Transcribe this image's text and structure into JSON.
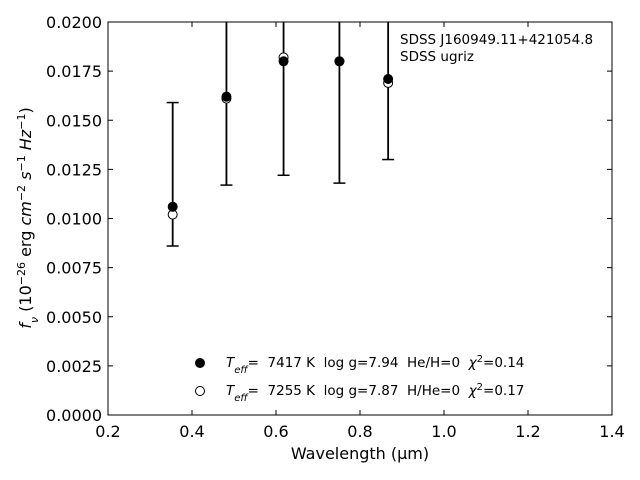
{
  "chart_data": {
    "type": "scatter",
    "xlabel": "Wavelength (μm)",
    "ylabel": "f_ν (10^-26 erg cm^-2 s^-1 Hz^-1)",
    "xlim": [
      0.2,
      1.4
    ],
    "ylim": [
      0.0,
      0.02
    ],
    "x_ticks": [
      "0.2",
      "0.4",
      "0.6",
      "0.8",
      "1.0",
      "1.2",
      "1.4"
    ],
    "y_ticks": [
      "0.0000",
      "0.0025",
      "0.0050",
      "0.0075",
      "0.0100",
      "0.0125",
      "0.0150",
      "0.0175",
      "0.0200"
    ],
    "annotation": [
      "SDSS J160949.11+421054.8",
      "SDSS ugriz"
    ],
    "legend_position": "lower-center",
    "observed": {
      "x": [
        0.354,
        0.482,
        0.618,
        0.751,
        0.867
      ],
      "y": [
        0.0106,
        0.0162,
        0.018,
        0.018,
        0.0171
      ],
      "err_low": [
        0.0086,
        0.0117,
        0.0122,
        0.0118,
        0.013
      ],
      "err_high": [
        0.0159,
        0.021,
        0.021,
        0.021,
        0.021
      ]
    },
    "series": [
      {
        "name": "He/H=0 model",
        "marker": "filled-circle",
        "label_parts": [
          "T",
          "eff",
          "=  7417 K  log g=7.94  He/H=0  ",
          "χ",
          "2",
          "=0.14"
        ],
        "x": [
          0.354,
          0.482,
          0.618,
          0.751,
          0.867
        ],
        "y": [
          0.0106,
          0.0162,
          0.018,
          0.018,
          0.0171
        ]
      },
      {
        "name": "H/He=0 model",
        "marker": "open-circle",
        "label_parts": [
          "T",
          "eff",
          "=  7255 K  log g=7.87  H/He=0  ",
          "χ",
          "2",
          "=0.17"
        ],
        "x": [
          0.354,
          0.482,
          0.618,
          0.751,
          0.867
        ],
        "y": [
          0.0102,
          0.0161,
          0.0182,
          0.018,
          0.0169
        ]
      }
    ],
    "grid": false
  }
}
